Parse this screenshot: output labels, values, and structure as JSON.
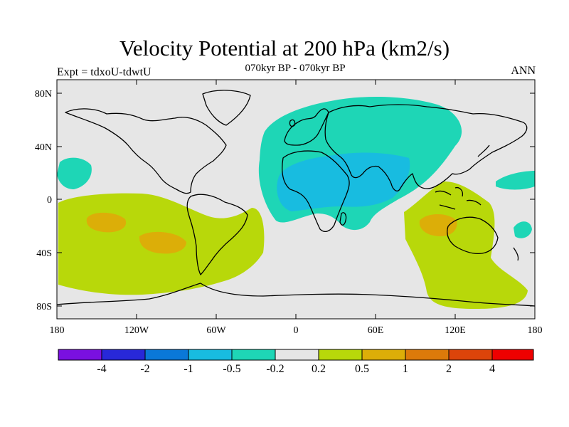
{
  "title": "Velocity Potential at 200 hPa (km2/s)",
  "subtitle": "070kyr BP - 070kyr BP",
  "left_label": "Expt = tdxoU-tdwtU",
  "right_label": "ANN",
  "lat_ticks": [
    "80N",
    "40N",
    "0",
    "40S",
    "80S"
  ],
  "lon_ticks": [
    "180",
    "120W",
    "60W",
    "0",
    "60E",
    "120E",
    "180"
  ],
  "colorbar": {
    "colors": [
      "#7a10e0",
      "#2828d8",
      "#0a78d8",
      "#18bce0",
      "#1ed6b6",
      "#e6e6e6",
      "#b8d80a",
      "#dcae08",
      "#dc7a0a",
      "#dc440a",
      "#ee0000"
    ],
    "labels": [
      "-4",
      "-2",
      "-1",
      "-0.5",
      "-0.2",
      "0.2",
      "0.5",
      "1",
      "2",
      "4"
    ]
  },
  "colors": {
    "background": "#e6e6e6",
    "neg_weak": "#1ed6b6",
    "neg_mid": "#18bce0",
    "pos_weak": "#b8d80a",
    "pos_mid": "#dcae08"
  }
}
